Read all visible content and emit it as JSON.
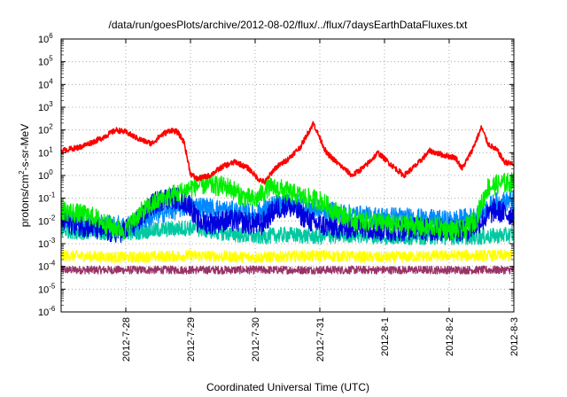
{
  "chart_data": {
    "type": "line",
    "title": "/data/run/goesPlots/archive/2012-08-02/flux/../flux/7daysEarthDataFluxes.txt",
    "xlabel": "Coordinated Universal Time (UTC)",
    "ylabel_base": "protons/cm",
    "ylabel_sup": "2",
    "ylabel_tail": "-s-sr-MeV",
    "y_scale": "log",
    "ylim": [
      1e-06,
      1000000.0
    ],
    "xlim": [
      "2012-07-27 00:00",
      "2012-08-03 00:00"
    ],
    "grid": true,
    "y_ticks": [
      {
        "base": "10",
        "exp": "6"
      },
      {
        "base": "10",
        "exp": "5"
      },
      {
        "base": "10",
        "exp": "4"
      },
      {
        "base": "10",
        "exp": "3"
      },
      {
        "base": "10",
        "exp": "2"
      },
      {
        "base": "10",
        "exp": "1"
      },
      {
        "base": "10",
        "exp": "0"
      },
      {
        "base": "10",
        "exp": "-1"
      },
      {
        "base": "10",
        "exp": "-2"
      },
      {
        "base": "10",
        "exp": "-3"
      },
      {
        "base": "10",
        "exp": "-4"
      },
      {
        "base": "10",
        "exp": "-5"
      },
      {
        "base": "10",
        "exp": "-6"
      }
    ],
    "x_ticks": [
      "2012-7-28",
      "2012-7-29",
      "2012-7-30",
      "2012-7-31",
      "2012-8-1",
      "2012-8-2",
      "2012-8-3"
    ],
    "series": [
      {
        "color": "#ff0000",
        "x": [
          0,
          0.3,
          0.6,
          0.85,
          1.0,
          1.2,
          1.4,
          1.55,
          1.7,
          1.8,
          1.9,
          2.0,
          2.1,
          2.3,
          2.5,
          2.7,
          2.9,
          3.05,
          3.15,
          3.3,
          3.5,
          3.7,
          3.9,
          4.1,
          4.3,
          4.5,
          4.7,
          4.9,
          5.1,
          5.3,
          5.5,
          5.7,
          5.9,
          6.1,
          6.2,
          6.35,
          6.5,
          6.6,
          6.75,
          6.85,
          7.0
        ],
        "y": [
          12,
          18,
          40,
          100,
          80,
          40,
          25,
          60,
          100,
          80,
          30,
          1.2,
          0.7,
          1.0,
          2.5,
          4,
          2,
          0.7,
          0.5,
          2,
          5,
          18,
          200,
          10,
          3,
          1.0,
          2.5,
          10,
          3,
          1.0,
          3,
          12,
          8,
          6,
          2,
          12,
          130,
          25,
          12,
          4,
          3
        ]
      },
      {
        "color": "#00ee00",
        "x": [
          0,
          0.5,
          0.8,
          1.0,
          1.2,
          1.5,
          1.75,
          1.9,
          2.0,
          2.2,
          2.4,
          2.6,
          2.8,
          3.0,
          3.2,
          3.4,
          3.6,
          3.8,
          4.0,
          4.2,
          4.4,
          4.6,
          4.8,
          5.0,
          5.2,
          5.4,
          5.6,
          5.8,
          6.0,
          6.2,
          6.4,
          6.6,
          6.8,
          7.0
        ],
        "y": [
          0.03,
          0.015,
          0.005,
          0.004,
          0.02,
          0.08,
          0.15,
          0.2,
          0.3,
          0.4,
          0.35,
          0.3,
          0.12,
          0.08,
          0.3,
          0.25,
          0.15,
          0.1,
          0.08,
          0.03,
          0.015,
          0.01,
          0.01,
          0.008,
          0.006,
          0.007,
          0.005,
          0.006,
          0.004,
          0.004,
          0.01,
          0.3,
          0.45,
          0.5
        ]
      },
      {
        "color": "#0000dd",
        "x": [
          0,
          0.5,
          0.8,
          1.0,
          1.2,
          1.4,
          1.6,
          1.8,
          2.0,
          2.1,
          2.3,
          2.5,
          2.7,
          2.9,
          3.1,
          3.3,
          3.5,
          3.7,
          3.9,
          4.1,
          4.3,
          4.5,
          4.7,
          4.9,
          5.1,
          5.3,
          5.5,
          5.7,
          5.9,
          6.1,
          6.3,
          6.5,
          6.7,
          6.9,
          7.0
        ],
        "y": [
          0.01,
          0.005,
          0.003,
          0.004,
          0.01,
          0.05,
          0.1,
          0.1,
          0.05,
          0.01,
          0.008,
          0.01,
          0.01,
          0.008,
          0.007,
          0.03,
          0.05,
          0.02,
          0.008,
          0.006,
          0.005,
          0.005,
          0.006,
          0.004,
          0.004,
          0.004,
          0.005,
          0.004,
          0.004,
          0.004,
          0.004,
          0.01,
          0.03,
          0.02,
          0.02
        ]
      },
      {
        "color": "#0088ff",
        "x": [
          0,
          0.5,
          1.0,
          1.5,
          2.0,
          2.5,
          3.0,
          3.3,
          3.6,
          4.0,
          4.4,
          4.8,
          5.2,
          5.6,
          6.0,
          6.4,
          6.7,
          7.0
        ],
        "y": [
          0.015,
          0.008,
          0.006,
          0.02,
          0.05,
          0.03,
          0.02,
          0.05,
          0.06,
          0.03,
          0.02,
          0.015,
          0.015,
          0.012,
          0.01,
          0.015,
          0.06,
          0.08
        ]
      },
      {
        "color": "#00c8a0",
        "x": [
          0,
          0.5,
          1.0,
          1.5,
          2.0,
          2.5,
          3.0,
          3.5,
          4.0,
          4.5,
          5.0,
          5.5,
          6.0,
          6.5,
          7.0
        ],
        "y": [
          0.004,
          0.003,
          0.003,
          0.004,
          0.005,
          0.003,
          0.002,
          0.0025,
          0.002,
          0.0025,
          0.002,
          0.002,
          0.002,
          0.002,
          0.0025
        ]
      },
      {
        "color": "#ffff00",
        "x": [
          0,
          1.0,
          2.0,
          3.0,
          4.0,
          5.0,
          6.0,
          7.0
        ],
        "y": [
          0.0003,
          0.00025,
          0.0003,
          0.00025,
          0.0003,
          0.00025,
          0.0003,
          0.0003
        ]
      },
      {
        "color": "#993366",
        "x": [
          0,
          1.0,
          2.0,
          3.0,
          4.0,
          5.0,
          6.0,
          7.0
        ],
        "y": [
          7e-05,
          7e-05,
          7e-05,
          7e-05,
          7e-05,
          7e-05,
          7e-05,
          7e-05
        ]
      }
    ]
  }
}
